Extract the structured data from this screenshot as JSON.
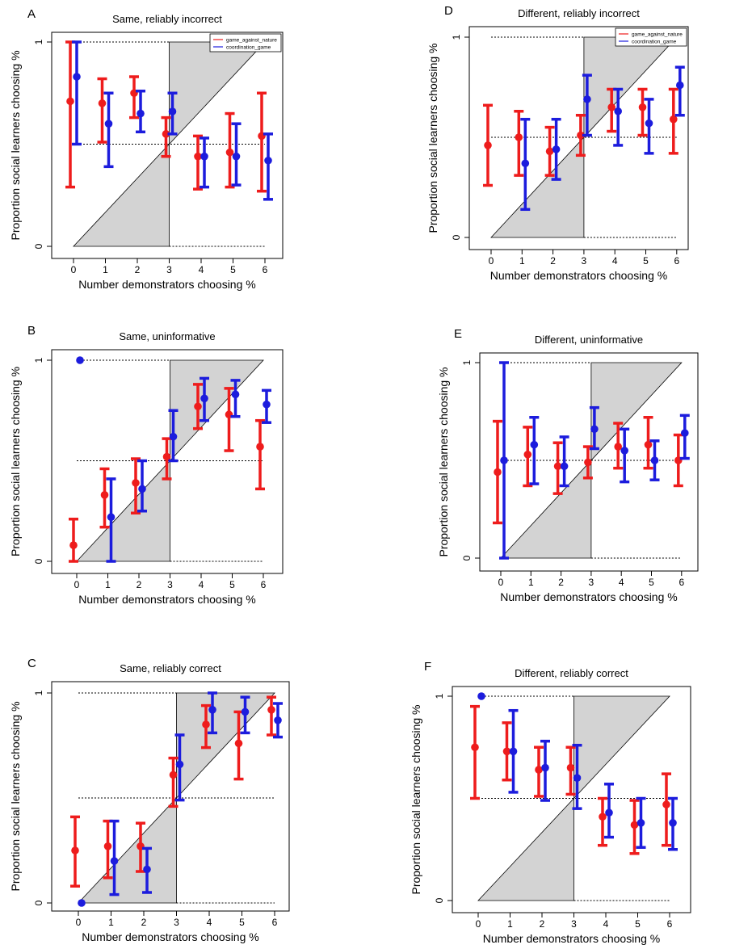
{
  "figure": {
    "colors": {
      "game_against_nature": "#ee1c1c",
      "coordination_game": "#1c1cdd",
      "shade": "#d3d3d3"
    }
  },
  "chart_data": [
    {
      "type": "scatter",
      "panel_letter": "A",
      "title": "Same, reliably incorrect",
      "xlabel": "Number demonstrators choosing %",
      "ylabel": "Proportion social learners choosing %",
      "xticks": [
        "0",
        "1",
        "2",
        "3",
        "4",
        "5",
        "6"
      ],
      "yticks": [
        "0",
        "1"
      ],
      "xlim": [
        -0.4,
        6.5
      ],
      "ylim": [
        0,
        1
      ],
      "grid": false,
      "legend": {
        "position": "top-right",
        "entries": [
          "game_against_nature",
          "coordination_game"
        ]
      },
      "series": [
        {
          "name": "game_against_nature",
          "color": "#ee1c1c",
          "points": [
            {
              "x": 0,
              "y": 0.71,
              "lo": 0.29,
              "hi": 1.0
            },
            {
              "x": 1,
              "y": 0.7,
              "lo": 0.51,
              "hi": 0.82
            },
            {
              "x": 2,
              "y": 0.75,
              "lo": 0.63,
              "hi": 0.83
            },
            {
              "x": 3,
              "y": 0.55,
              "lo": 0.44,
              "hi": 0.63
            },
            {
              "x": 4,
              "y": 0.44,
              "lo": 0.28,
              "hi": 0.54
            },
            {
              "x": 5,
              "y": 0.46,
              "lo": 0.29,
              "hi": 0.65
            },
            {
              "x": 6,
              "y": 0.54,
              "lo": 0.27,
              "hi": 0.75
            }
          ]
        },
        {
          "name": "coordination_game",
          "color": "#1c1cdd",
          "points": [
            {
              "x": 0,
              "y": 0.83,
              "lo": 0.5,
              "hi": 1.0
            },
            {
              "x": 1,
              "y": 0.6,
              "lo": 0.39,
              "hi": 0.75
            },
            {
              "x": 2,
              "y": 0.65,
              "lo": 0.56,
              "hi": 0.76
            },
            {
              "x": 3,
              "y": 0.66,
              "lo": 0.55,
              "hi": 0.75
            },
            {
              "x": 4,
              "y": 0.44,
              "lo": 0.29,
              "hi": 0.53
            },
            {
              "x": 5,
              "y": 0.44,
              "lo": 0.3,
              "hi": 0.6
            },
            {
              "x": 6,
              "y": 0.42,
              "lo": 0.23,
              "hi": 0.55
            }
          ]
        }
      ]
    },
    {
      "type": "scatter",
      "panel_letter": "B",
      "title": "Same, uninformative",
      "xlabel": "Number demonstrators choosing %",
      "ylabel": "Proportion social learners choosing %",
      "xticks": [
        "0",
        "1",
        "2",
        "3",
        "4",
        "5",
        "6"
      ],
      "yticks": [
        "0",
        "1"
      ],
      "xlim": [
        -0.4,
        6.5
      ],
      "ylim": [
        0,
        1
      ],
      "grid": false,
      "series": [
        {
          "name": "game_against_nature",
          "color": "#ee1c1c",
          "points": [
            {
              "x": 0,
              "y": 0.08,
              "lo": 0.0,
              "hi": 0.21
            },
            {
              "x": 1,
              "y": 0.33,
              "lo": 0.17,
              "hi": 0.46
            },
            {
              "x": 2,
              "y": 0.39,
              "lo": 0.24,
              "hi": 0.51
            },
            {
              "x": 3,
              "y": 0.52,
              "lo": 0.41,
              "hi": 0.61
            },
            {
              "x": 4,
              "y": 0.77,
              "lo": 0.66,
              "hi": 0.88
            },
            {
              "x": 5,
              "y": 0.73,
              "lo": 0.55,
              "hi": 0.86
            },
            {
              "x": 6,
              "y": 0.57,
              "lo": 0.36,
              "hi": 0.7
            }
          ]
        },
        {
          "name": "coordination_game",
          "color": "#1c1cdd",
          "points": [
            {
              "x": 0,
              "y": 1.0,
              "lo": 1.0,
              "hi": 1.0
            },
            {
              "x": 1,
              "y": 0.22,
              "lo": 0.0,
              "hi": 0.41
            },
            {
              "x": 2,
              "y": 0.36,
              "lo": 0.25,
              "hi": 0.5
            },
            {
              "x": 3,
              "y": 0.62,
              "lo": 0.5,
              "hi": 0.75
            },
            {
              "x": 4,
              "y": 0.81,
              "lo": 0.7,
              "hi": 0.91
            },
            {
              "x": 5,
              "y": 0.83,
              "lo": 0.72,
              "hi": 0.9
            },
            {
              "x": 6,
              "y": 0.78,
              "lo": 0.69,
              "hi": 0.85
            }
          ]
        }
      ]
    },
    {
      "type": "scatter",
      "panel_letter": "C",
      "title": "Same, reliably correct",
      "xlabel": "Number demonstrators choosing %",
      "ylabel": "Proportion social learners choosing %",
      "xticks": [
        "0",
        "1",
        "2",
        "3",
        "4",
        "5",
        "6"
      ],
      "yticks": [
        "0",
        "1"
      ],
      "xlim": [
        -0.4,
        6.5
      ],
      "ylim": [
        0,
        1
      ],
      "grid": false,
      "series": [
        {
          "name": "game_against_nature",
          "color": "#ee1c1c",
          "points": [
            {
              "x": 0,
              "y": 0.25,
              "lo": 0.08,
              "hi": 0.41
            },
            {
              "x": 1,
              "y": 0.27,
              "lo": 0.12,
              "hi": 0.39
            },
            {
              "x": 2,
              "y": 0.27,
              "lo": 0.15,
              "hi": 0.38
            },
            {
              "x": 3,
              "y": 0.61,
              "lo": 0.46,
              "hi": 0.69
            },
            {
              "x": 4,
              "y": 0.85,
              "lo": 0.74,
              "hi": 0.94
            },
            {
              "x": 5,
              "y": 0.76,
              "lo": 0.59,
              "hi": 0.91
            },
            {
              "x": 6,
              "y": 0.92,
              "lo": 0.8,
              "hi": 0.98
            }
          ]
        },
        {
          "name": "coordination_game",
          "color": "#1c1cdd",
          "points": [
            {
              "x": 0,
              "y": 0.0,
              "lo": 0.0,
              "hi": 0.0
            },
            {
              "x": 1,
              "y": 0.2,
              "lo": 0.04,
              "hi": 0.39
            },
            {
              "x": 2,
              "y": 0.16,
              "lo": 0.05,
              "hi": 0.26
            },
            {
              "x": 3,
              "y": 0.66,
              "lo": 0.49,
              "hi": 0.8
            },
            {
              "x": 4,
              "y": 0.92,
              "lo": 0.81,
              "hi": 1.0
            },
            {
              "x": 5,
              "y": 0.91,
              "lo": 0.81,
              "hi": 0.98
            },
            {
              "x": 6,
              "y": 0.87,
              "lo": 0.79,
              "hi": 0.95
            }
          ]
        }
      ]
    },
    {
      "type": "scatter",
      "panel_letter": "D",
      "title": "Different, reliably incorrect",
      "xlabel": "Number demonstrators choosing %",
      "ylabel": "Proportion social learners choosing %",
      "xticks": [
        "0",
        "1",
        "2",
        "3",
        "4",
        "5",
        "6"
      ],
      "yticks": [
        "0",
        "1"
      ],
      "xlim": [
        -0.4,
        6.5
      ],
      "ylim": [
        0,
        1
      ],
      "grid": false,
      "legend": {
        "position": "top-right",
        "entries": [
          "game_against_nature",
          "coordination_game"
        ]
      },
      "series": [
        {
          "name": "game_against_nature",
          "color": "#ee1c1c",
          "points": [
            {
              "x": 0,
              "y": 0.46,
              "lo": 0.26,
              "hi": 0.66
            },
            {
              "x": 1,
              "y": 0.5,
              "lo": 0.31,
              "hi": 0.63
            },
            {
              "x": 2,
              "y": 0.43,
              "lo": 0.31,
              "hi": 0.55
            },
            {
              "x": 3,
              "y": 0.51,
              "lo": 0.41,
              "hi": 0.61
            },
            {
              "x": 4,
              "y": 0.65,
              "lo": 0.53,
              "hi": 0.74
            },
            {
              "x": 5,
              "y": 0.65,
              "lo": 0.51,
              "hi": 0.74
            },
            {
              "x": 6,
              "y": 0.59,
              "lo": 0.42,
              "hi": 0.74
            }
          ]
        },
        {
          "name": "coordination_game",
          "color": "#1c1cdd",
          "points": [
            {
              "x": 0,
              "y": null,
              "lo": null,
              "hi": null
            },
            {
              "x": 1,
              "y": 0.37,
              "lo": 0.14,
              "hi": 0.59
            },
            {
              "x": 2,
              "y": 0.44,
              "lo": 0.29,
              "hi": 0.59
            },
            {
              "x": 3,
              "y": 0.69,
              "lo": 0.51,
              "hi": 0.81
            },
            {
              "x": 4,
              "y": 0.63,
              "lo": 0.46,
              "hi": 0.74
            },
            {
              "x": 5,
              "y": 0.57,
              "lo": 0.42,
              "hi": 0.69
            },
            {
              "x": 6,
              "y": 0.76,
              "lo": 0.61,
              "hi": 0.85
            }
          ]
        }
      ]
    },
    {
      "type": "scatter",
      "panel_letter": "E",
      "title": "Different, uninformative",
      "xlabel": "Number demonstrators choosing %",
      "ylabel": "Proportion social learners choosing %",
      "xticks": [
        "0",
        "1",
        "2",
        "3",
        "4",
        "5",
        "6"
      ],
      "yticks": [
        "0",
        "1"
      ],
      "xlim": [
        -0.4,
        6.5
      ],
      "ylim": [
        0,
        1
      ],
      "grid": false,
      "series": [
        {
          "name": "game_against_nature",
          "color": "#ee1c1c",
          "points": [
            {
              "x": 0,
              "y": 0.44,
              "lo": 0.18,
              "hi": 0.7
            },
            {
              "x": 1,
              "y": 0.53,
              "lo": 0.37,
              "hi": 0.67
            },
            {
              "x": 2,
              "y": 0.47,
              "lo": 0.33,
              "hi": 0.59
            },
            {
              "x": 3,
              "y": 0.49,
              "lo": 0.41,
              "hi": 0.57
            },
            {
              "x": 4,
              "y": 0.57,
              "lo": 0.46,
              "hi": 0.69
            },
            {
              "x": 5,
              "y": 0.58,
              "lo": 0.46,
              "hi": 0.72
            },
            {
              "x": 6,
              "y": 0.5,
              "lo": 0.37,
              "hi": 0.63
            }
          ]
        },
        {
          "name": "coordination_game",
          "color": "#1c1cdd",
          "points": [
            {
              "x": 0,
              "y": 0.5,
              "lo": 0.0,
              "hi": 1.0
            },
            {
              "x": 1,
              "y": 0.58,
              "lo": 0.38,
              "hi": 0.72
            },
            {
              "x": 2,
              "y": 0.47,
              "lo": 0.37,
              "hi": 0.62
            },
            {
              "x": 3,
              "y": 0.66,
              "lo": 0.56,
              "hi": 0.77
            },
            {
              "x": 4,
              "y": 0.55,
              "lo": 0.39,
              "hi": 0.66
            },
            {
              "x": 5,
              "y": 0.5,
              "lo": 0.4,
              "hi": 0.6
            },
            {
              "x": 6,
              "y": 0.64,
              "lo": 0.51,
              "hi": 0.73
            }
          ]
        }
      ]
    },
    {
      "type": "scatter",
      "panel_letter": "F",
      "title": "Different, reliably correct",
      "xlabel": "Number demonstrators choosing %",
      "ylabel": "Proportion social learners choosing %",
      "xticks": [
        "0",
        "1",
        "2",
        "3",
        "4",
        "5",
        "6"
      ],
      "yticks": [
        "0",
        "1"
      ],
      "xlim": [
        -0.4,
        6.5
      ],
      "ylim": [
        0,
        1
      ],
      "grid": false,
      "series": [
        {
          "name": "game_against_nature",
          "color": "#ee1c1c",
          "points": [
            {
              "x": 0,
              "y": 0.75,
              "lo": 0.5,
              "hi": 0.95
            },
            {
              "x": 1,
              "y": 0.73,
              "lo": 0.59,
              "hi": 0.87
            },
            {
              "x": 2,
              "y": 0.64,
              "lo": 0.51,
              "hi": 0.75
            },
            {
              "x": 3,
              "y": 0.65,
              "lo": 0.52,
              "hi": 0.75
            },
            {
              "x": 4,
              "y": 0.41,
              "lo": 0.27,
              "hi": 0.5
            },
            {
              "x": 5,
              "y": 0.37,
              "lo": 0.23,
              "hi": 0.49
            },
            {
              "x": 6,
              "y": 0.47,
              "lo": 0.27,
              "hi": 0.62
            }
          ]
        },
        {
          "name": "coordination_game",
          "color": "#1c1cdd",
          "points": [
            {
              "x": 0,
              "y": 1.0,
              "lo": 1.0,
              "hi": 1.0
            },
            {
              "x": 1,
              "y": 0.73,
              "lo": 0.53,
              "hi": 0.93
            },
            {
              "x": 2,
              "y": 0.65,
              "lo": 0.49,
              "hi": 0.78
            },
            {
              "x": 3,
              "y": 0.6,
              "lo": 0.45,
              "hi": 0.76
            },
            {
              "x": 4,
              "y": 0.43,
              "lo": 0.31,
              "hi": 0.57
            },
            {
              "x": 5,
              "y": 0.38,
              "lo": 0.26,
              "hi": 0.5
            },
            {
              "x": 6,
              "y": 0.38,
              "lo": 0.25,
              "hi": 0.5
            }
          ]
        }
      ]
    }
  ]
}
